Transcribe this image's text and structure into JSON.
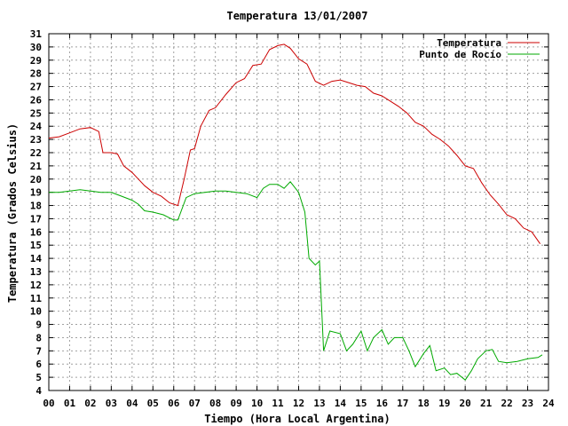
{
  "chart_data": {
    "type": "line",
    "title": "Temperatura 13/01/2007",
    "xlabel": "Tiempo (Hora Local Argentina)",
    "ylabel": "Temperatura (Grados Celsius)",
    "xlim": [
      0,
      24
    ],
    "ylim": [
      4,
      31
    ],
    "x_ticks": [
      "00",
      "01",
      "02",
      "03",
      "04",
      "05",
      "06",
      "07",
      "08",
      "09",
      "10",
      "11",
      "12",
      "13",
      "14",
      "15",
      "16",
      "17",
      "18",
      "19",
      "20",
      "21",
      "22",
      "23",
      "24"
    ],
    "y_ticks": [
      4,
      5,
      6,
      7,
      8,
      9,
      10,
      11,
      12,
      13,
      14,
      15,
      16,
      17,
      18,
      19,
      20,
      21,
      22,
      23,
      24,
      25,
      26,
      27,
      28,
      29,
      30,
      31
    ],
    "grid": true,
    "legend_position": "top-right",
    "series": [
      {
        "name": "Temperatura",
        "color": "#cc0000",
        "x": [
          0,
          0.5,
          1,
          1.5,
          2,
          2.4,
          2.6,
          3,
          3.3,
          3.6,
          4,
          4.3,
          4.6,
          5,
          5.4,
          5.8,
          6.2,
          6.5,
          6.8,
          7.0,
          7.3,
          7.7,
          8.0,
          8.5,
          9.0,
          9.4,
          9.8,
          10.2,
          10.6,
          11.0,
          11.3,
          11.6,
          12.0,
          12.4,
          12.8,
          13.2,
          13.6,
          14.0,
          14.4,
          14.8,
          15.2,
          15.6,
          16.0,
          16.4,
          16.8,
          17.2,
          17.6,
          18.0,
          18.4,
          18.8,
          19.2,
          19.6,
          20.0,
          20.4,
          20.8,
          21.2,
          21.6,
          22.0,
          22.4,
          22.8,
          23.2,
          23.6
        ],
        "y": [
          23.1,
          23.2,
          23.5,
          23.8,
          23.9,
          23.6,
          22.0,
          22.0,
          21.9,
          21.0,
          20.5,
          20.0,
          19.5,
          19.0,
          18.7,
          18.2,
          18.0,
          20.0,
          22.2,
          22.3,
          24.0,
          25.2,
          25.4,
          26.4,
          27.3,
          27.6,
          28.6,
          28.7,
          29.8,
          30.1,
          30.2,
          29.9,
          29.1,
          28.7,
          27.4,
          27.1,
          27.4,
          27.5,
          27.3,
          27.1,
          27.0,
          26.5,
          26.3,
          25.9,
          25.5,
          25.0,
          24.3,
          24.0,
          23.4,
          23.0,
          22.5,
          21.8,
          21.0,
          20.8,
          19.7,
          18.8,
          18.1,
          17.3,
          17.0,
          16.3,
          16.0,
          15.1
        ]
      },
      {
        "name": "Punto de Rocío",
        "color": "#00aa00",
        "x": [
          0,
          0.5,
          1,
          1.5,
          2,
          2.5,
          3,
          3.5,
          4,
          4.3,
          4.6,
          5,
          5.5,
          6.0,
          6.2,
          6.6,
          7.0,
          7.5,
          8.0,
          8.5,
          9.0,
          9.5,
          10.0,
          10.3,
          10.6,
          11.0,
          11.3,
          11.6,
          12.0,
          12.3,
          12.5,
          12.8,
          13.0,
          13.2,
          13.5,
          14.0,
          14.3,
          14.6,
          15.0,
          15.3,
          15.6,
          16.0,
          16.3,
          16.6,
          17.0,
          17.3,
          17.6,
          18.0,
          18.3,
          18.6,
          19.0,
          19.3,
          19.6,
          20.0,
          20.3,
          20.6,
          21.0,
          21.3,
          21.6,
          22.0,
          22.5,
          23.0,
          23.5,
          23.7
        ],
        "y": [
          19.0,
          19.0,
          19.1,
          19.2,
          19.1,
          19.0,
          19.0,
          18.7,
          18.4,
          18.1,
          17.6,
          17.5,
          17.3,
          16.9,
          16.9,
          18.6,
          18.9,
          19.0,
          19.1,
          19.1,
          19.0,
          18.9,
          18.6,
          19.3,
          19.6,
          19.6,
          19.3,
          19.8,
          19.0,
          17.5,
          14.0,
          13.5,
          13.8,
          7.0,
          8.5,
          8.3,
          7.0,
          7.5,
          8.5,
          7.0,
          8.0,
          8.6,
          7.5,
          8.0,
          8.0,
          7.0,
          5.8,
          6.8,
          7.4,
          5.5,
          5.7,
          5.2,
          5.3,
          4.8,
          5.5,
          6.4,
          7.0,
          7.1,
          6.2,
          6.1,
          6.2,
          6.4,
          6.5,
          6.7
        ]
      }
    ]
  }
}
